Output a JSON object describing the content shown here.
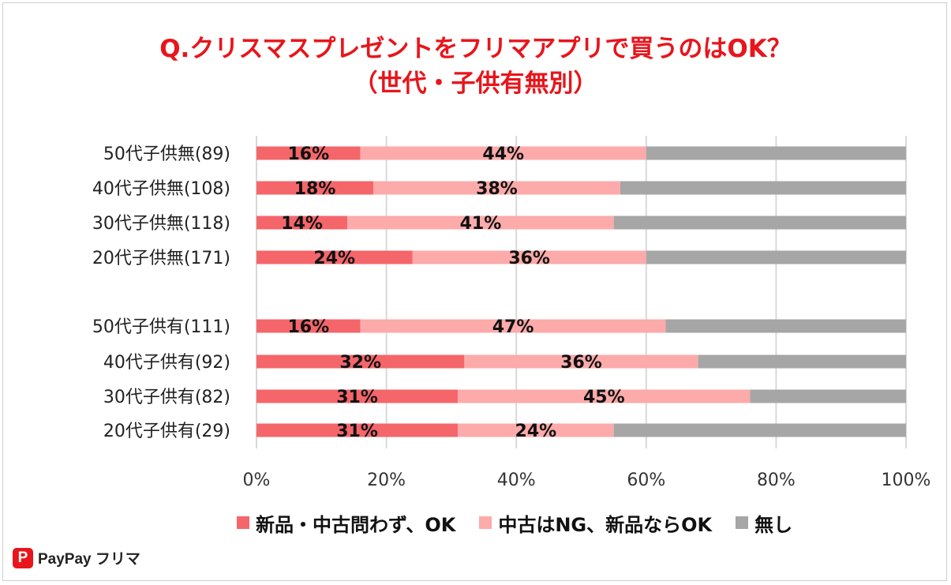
{
  "title_line1": "Q.クリスマスプレゼントをフリマアプリで買うのはOK？",
  "title_line2": "（世代・子供有無別）",
  "colors": {
    "title": "#e8151c",
    "s1": "#f4666a",
    "s2": "#fdaaaa",
    "s3": "#a6a6a6",
    "grid": "#d9d9d9"
  },
  "chart_data": {
    "type": "bar",
    "orientation": "horizontal",
    "stacked": "percent",
    "title": "Q.クリスマスプレゼントをフリマアプリで買うのはOK？（世代・子供有無別）",
    "categories": [
      "50代子供無(89)",
      "40代子供無(108)",
      "30代子供無(118)",
      "20代子供無(171)",
      "50代子供有(111)",
      "40代子供有(92)",
      "30代子供有(82)",
      "20代子供有(29)"
    ],
    "series": [
      {
        "name": "新品・中古問わず、OK",
        "values": [
          16,
          18,
          14,
          24,
          16,
          32,
          31,
          31
        ],
        "labels": [
          "16%",
          "18%",
          "14%",
          "24%",
          "16%",
          "32%",
          "31%",
          "31%"
        ]
      },
      {
        "name": "中古はNG、新品ならOK",
        "values": [
          44,
          38,
          41,
          36,
          47,
          36,
          45,
          24
        ],
        "labels": [
          "44%",
          "38%",
          "41%",
          "36%",
          "47%",
          "36%",
          "45%",
          "24%"
        ]
      },
      {
        "name": "無し",
        "values": [
          40,
          44,
          45,
          40,
          37,
          32,
          24,
          45
        ]
      }
    ],
    "x_ticks": [
      "0%",
      "20%",
      "40%",
      "60%",
      "80%",
      "100%"
    ],
    "xlim": [
      0,
      100
    ],
    "grid": "vertical",
    "legend_position": "bottom"
  },
  "logo": {
    "mark": "P",
    "text": "PayPay フリマ"
  }
}
